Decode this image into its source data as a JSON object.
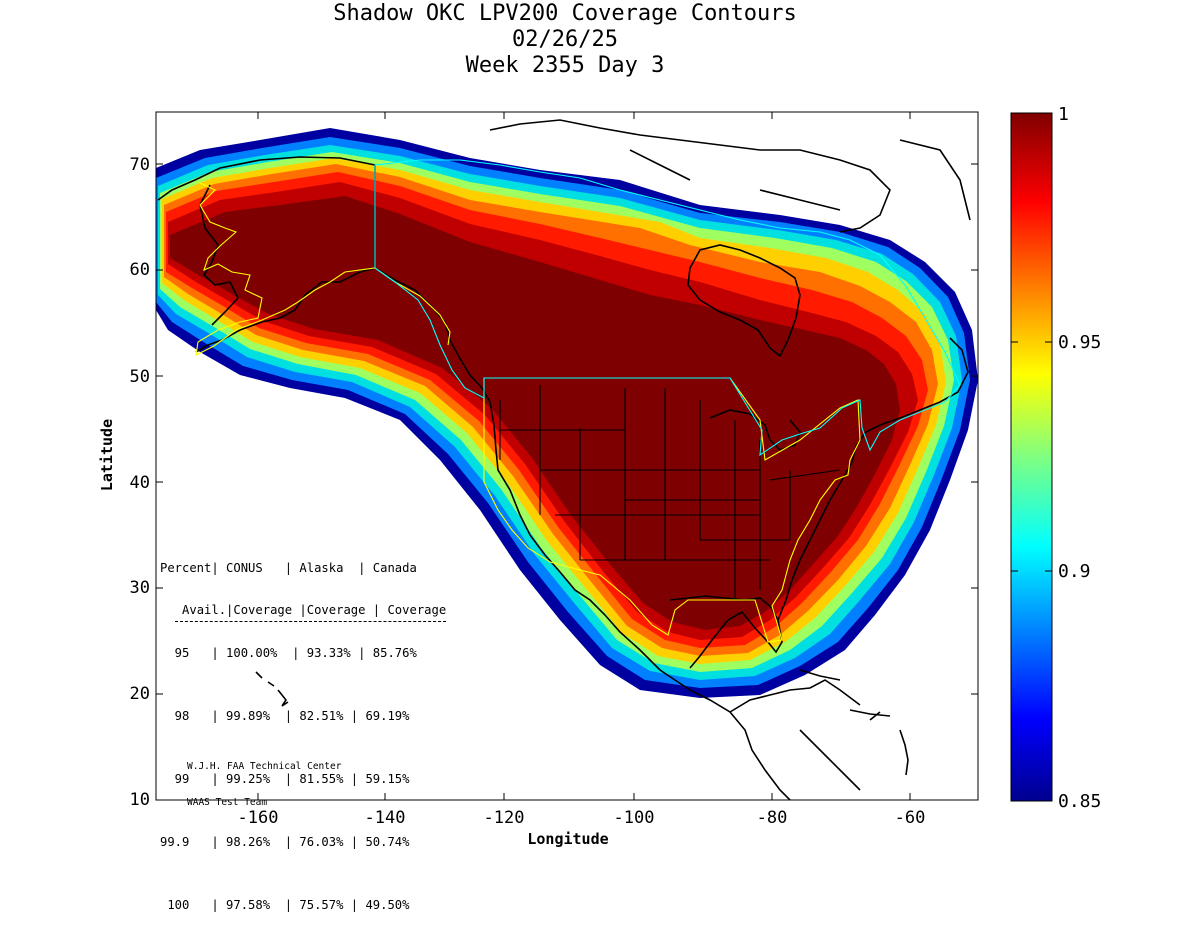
{
  "title": {
    "line1": "Shadow OKC LPV200 Coverage Contours",
    "line2": "02/26/25",
    "line3": "Week 2355 Day 3"
  },
  "axes": {
    "xlabel": "Longitude",
    "ylabel": "Latitude",
    "xticks": [
      "-160",
      "-140",
      "-120",
      "-100",
      "-80",
      "-60"
    ],
    "yticks": [
      "10",
      "20",
      "30",
      "40",
      "50",
      "60",
      "70"
    ]
  },
  "colorbar": {
    "ticks": [
      "1",
      "0.95",
      "0.9",
      "0.85"
    ],
    "colormap": "jet",
    "min": 0.85,
    "max": 1
  },
  "table": {
    "header1": "Percent| CONUS   | Alaska  | Canada",
    "header2": " Avail.|Coverage |Coverage | Coverage",
    "rows": [
      "  95   | 100.00%  | 93.33% | 85.76%",
      "  98   | 99.89%  | 82.51% | 69.19%",
      "  99   | 99.25%  | 81.55% | 59.15%",
      "99.9   | 98.26%  | 76.03% | 50.74%",
      " 100   | 97.58%  | 75.57% | 49.50%"
    ]
  },
  "credit": {
    "line1": "W.J.H. FAA Technical Center",
    "line2": "WAAS Test Team"
  },
  "colors": {
    "core": "#7f0000",
    "coastline": "#000000",
    "conus_border": "#ffff00",
    "canada_border": "#00ffff"
  }
}
